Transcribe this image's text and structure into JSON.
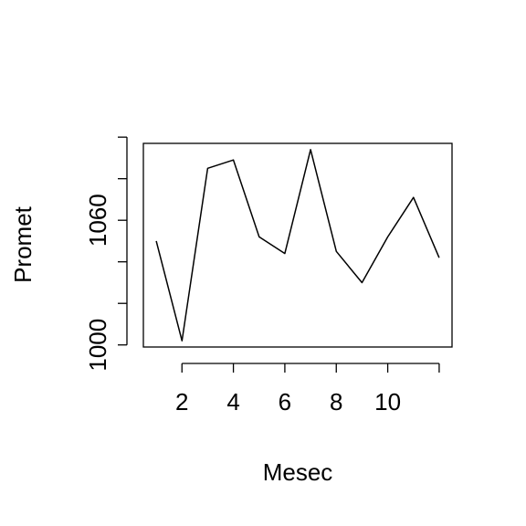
{
  "chart_data": {
    "type": "line",
    "title": "",
    "xlabel": "Mesec",
    "ylabel": "Promet",
    "x": [
      1,
      2,
      3,
      4,
      5,
      6,
      7,
      8,
      9,
      10,
      11,
      12
    ],
    "series": [
      {
        "values": [
          1050,
          1002,
          1085,
          1089,
          1052,
          1044,
          1094,
          1045,
          1030,
          1052,
          1071,
          1042
        ]
      }
    ],
    "xlim": [
      0.5,
      12.5
    ],
    "ylim": [
      999,
      1097
    ],
    "x_ticks": [
      2,
      4,
      6,
      8,
      10,
      12
    ],
    "x_tick_labels": [
      "2",
      "4",
      "6",
      "8",
      "10",
      ""
    ],
    "y_ticks": [
      1000,
      1020,
      1040,
      1060,
      1080,
      1100
    ],
    "y_tick_labels": [
      "1000",
      "",
      "",
      "1060",
      "",
      ""
    ],
    "grid": false,
    "line_color": "#000000"
  }
}
